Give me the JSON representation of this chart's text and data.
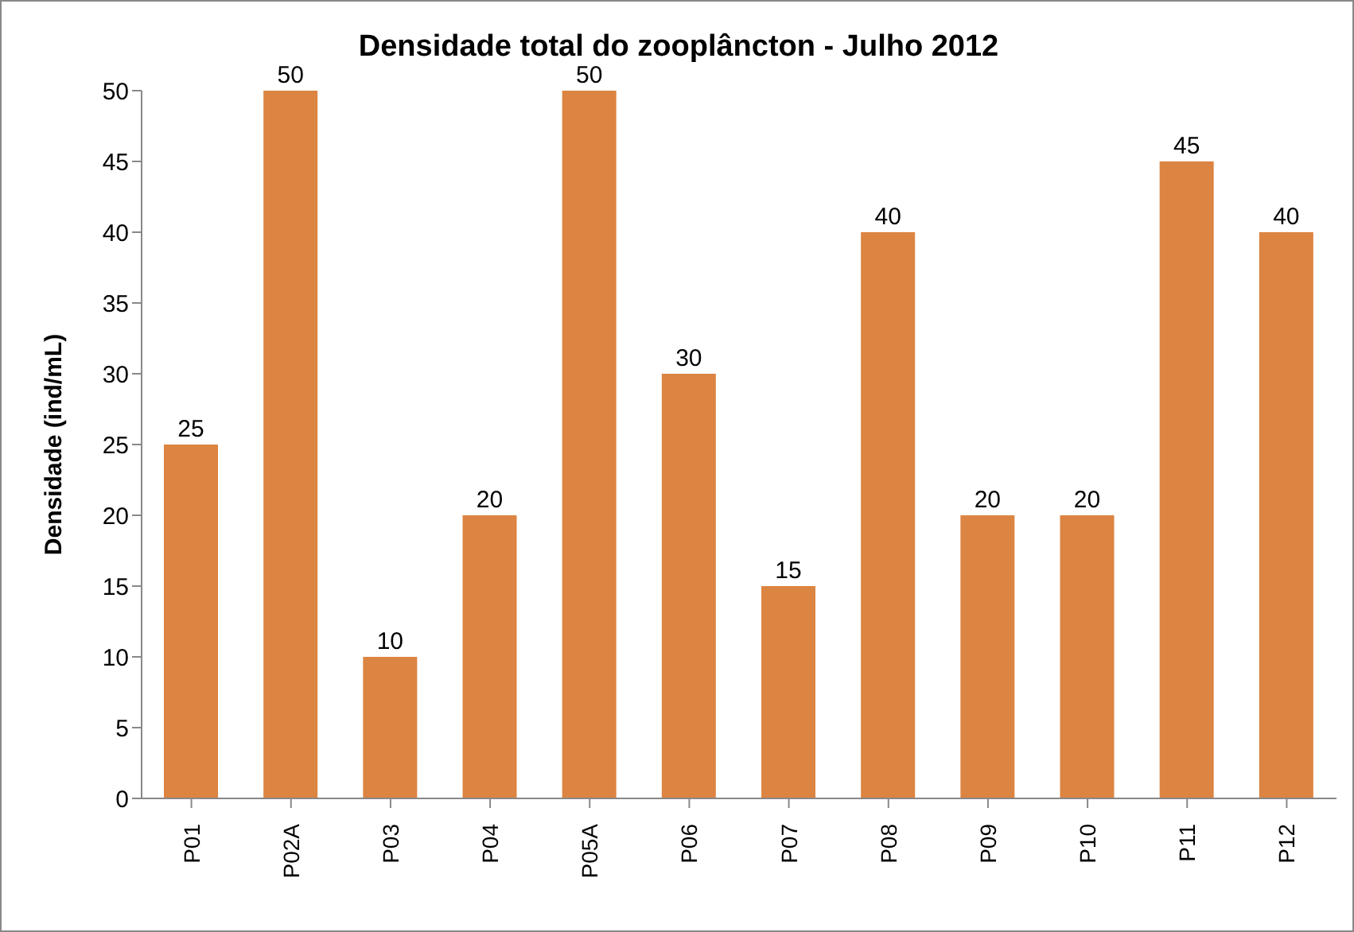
{
  "chart_data": {
    "type": "bar",
    "title": "Densidade total do zooplâncton - Julho 2012",
    "ylabel": "Densidade (ind/mL)",
    "categories": [
      "P01",
      "P02A",
      "P03",
      "P04",
      "P05A",
      "P06",
      "P07",
      "P08",
      "P09",
      "P10",
      "P11",
      "P12"
    ],
    "values": [
      25,
      50,
      10,
      20,
      50,
      30,
      15,
      40,
      20,
      20,
      45,
      40
    ],
    "color": "#dc8441",
    "ylim": [
      0,
      50
    ],
    "yticks": [
      0,
      5,
      10,
      15,
      20,
      25,
      30,
      35,
      40,
      45,
      50
    ],
    "grid": false,
    "data_labels": true
  }
}
